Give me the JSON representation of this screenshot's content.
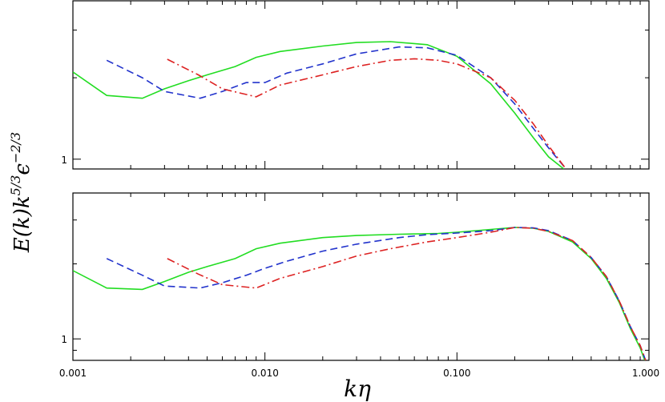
{
  "chart_data": [
    {
      "type": "line",
      "xscale": "log",
      "yscale": "log",
      "xlim": [
        0.001,
        1.0
      ],
      "ylim": [
        0.92,
        3.85
      ],
      "ytick_values": [
        1
      ],
      "ytick_labels": [
        "1"
      ],
      "xtick_labels_shown": false,
      "series": [
        {
          "color": "#22dd22",
          "dash": "solid",
          "x": [
            0.001,
            0.0015,
            0.0023,
            0.003,
            0.004,
            0.005,
            0.007,
            0.009,
            0.012,
            0.02,
            0.03,
            0.045,
            0.07,
            0.1,
            0.15,
            0.2,
            0.25,
            0.3,
            0.36
          ],
          "y": [
            2.1,
            1.72,
            1.68,
            1.82,
            1.95,
            2.05,
            2.2,
            2.38,
            2.5,
            2.62,
            2.7,
            2.72,
            2.65,
            2.4,
            1.9,
            1.48,
            1.2,
            1.02,
            0.92
          ]
        },
        {
          "color": "#2233cc",
          "dash": "dashed",
          "x": [
            0.0015,
            0.0023,
            0.003,
            0.0046,
            0.006,
            0.008,
            0.01,
            0.013,
            0.02,
            0.03,
            0.05,
            0.07,
            0.1,
            0.15,
            0.2,
            0.25,
            0.3,
            0.37
          ],
          "y": [
            2.32,
            2.0,
            1.78,
            1.68,
            1.78,
            1.92,
            1.92,
            2.08,
            2.25,
            2.45,
            2.6,
            2.58,
            2.42,
            2.0,
            1.6,
            1.3,
            1.1,
            0.92
          ]
        },
        {
          "color": "#dd2222",
          "dash": "dashdot",
          "x": [
            0.0031,
            0.0045,
            0.006,
            0.009,
            0.012,
            0.02,
            0.03,
            0.045,
            0.06,
            0.08,
            0.1,
            0.15,
            0.2,
            0.25,
            0.3,
            0.37
          ],
          "y": [
            2.34,
            2.05,
            1.82,
            1.7,
            1.88,
            2.05,
            2.2,
            2.32,
            2.35,
            2.32,
            2.25,
            2.0,
            1.65,
            1.35,
            1.12,
            0.92
          ]
        }
      ]
    },
    {
      "type": "line",
      "xscale": "log",
      "yscale": "log",
      "xlim": [
        0.001,
        1.0
      ],
      "ylim": [
        0.82,
        3.85
      ],
      "ytick_values": [
        1
      ],
      "ytick_labels": [
        "1"
      ],
      "xticks": [
        0.001,
        0.01,
        0.1,
        1.0
      ],
      "xtick_labels": [
        "0.001",
        "0.010",
        "0.100",
        "1.000"
      ],
      "xtick_labels_shown": true,
      "series": [
        {
          "color": "#22dd22",
          "dash": "solid",
          "x": [
            0.001,
            0.0015,
            0.0023,
            0.003,
            0.004,
            0.005,
            0.007,
            0.009,
            0.012,
            0.02,
            0.03,
            0.05,
            0.08,
            0.1,
            0.15,
            0.2,
            0.25,
            0.3,
            0.4,
            0.5,
            0.6,
            0.7,
            0.8,
            0.9,
            0.95
          ],
          "y": [
            1.88,
            1.6,
            1.58,
            1.7,
            1.85,
            1.95,
            2.1,
            2.3,
            2.42,
            2.55,
            2.6,
            2.63,
            2.65,
            2.68,
            2.75,
            2.8,
            2.78,
            2.7,
            2.45,
            2.1,
            1.75,
            1.4,
            1.1,
            0.92,
            0.82
          ]
        },
        {
          "color": "#2233cc",
          "dash": "dashed",
          "x": [
            0.0015,
            0.0023,
            0.003,
            0.0046,
            0.006,
            0.008,
            0.01,
            0.013,
            0.02,
            0.03,
            0.05,
            0.07,
            0.1,
            0.15,
            0.2,
            0.25,
            0.3,
            0.4,
            0.5,
            0.6,
            0.7,
            0.8,
            0.9,
            0.96
          ],
          "y": [
            2.1,
            1.8,
            1.63,
            1.6,
            1.68,
            1.8,
            1.92,
            2.05,
            2.25,
            2.4,
            2.55,
            2.62,
            2.66,
            2.72,
            2.8,
            2.79,
            2.72,
            2.48,
            2.12,
            1.78,
            1.42,
            1.12,
            0.94,
            0.82
          ]
        },
        {
          "color": "#dd2222",
          "dash": "dashdot",
          "x": [
            0.0031,
            0.0045,
            0.006,
            0.009,
            0.012,
            0.02,
            0.03,
            0.045,
            0.07,
            0.1,
            0.15,
            0.2,
            0.25,
            0.3,
            0.4,
            0.5,
            0.6,
            0.7,
            0.8,
            0.9,
            0.96
          ],
          "y": [
            2.1,
            1.82,
            1.65,
            1.6,
            1.75,
            1.95,
            2.15,
            2.3,
            2.45,
            2.55,
            2.68,
            2.8,
            2.78,
            2.7,
            2.48,
            2.12,
            1.78,
            1.42,
            1.12,
            0.94,
            0.82
          ]
        }
      ]
    }
  ],
  "shared_axes": {
    "ylabel": "E(k)k5/3ϵ−2/3",
    "ylabel_parts": {
      "base": "E(k)k",
      "k_exponent": "5/3",
      "epsilon": "ϵ",
      "eps_exponent": "−2/3"
    },
    "xlabel": "kη"
  }
}
